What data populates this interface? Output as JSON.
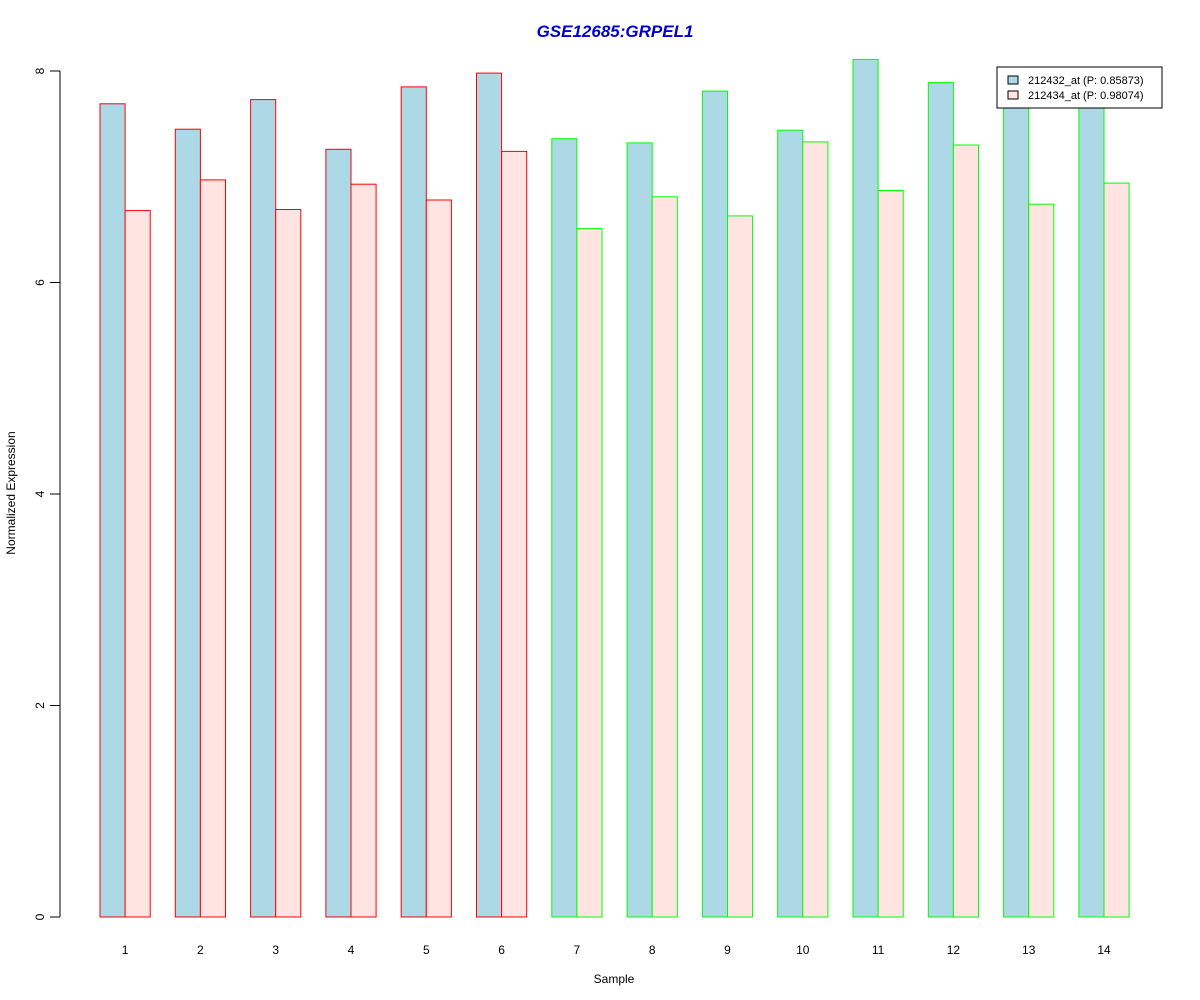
{
  "chart_data": {
    "type": "bar",
    "title": "GSE12685:GRPEL1",
    "xlabel": "Sample",
    "ylabel": "Normalized Expression",
    "categories": [
      "1",
      "2",
      "3",
      "4",
      "5",
      "6",
      "7",
      "8",
      "9",
      "10",
      "11",
      "12",
      "13",
      "14"
    ],
    "y_ticks": [
      "0",
      "2",
      "4",
      "6",
      "8"
    ],
    "ylim": [
      0,
      8
    ],
    "grid": false,
    "legend_position": "top-right",
    "series": [
      {
        "name": "212432_at (P: 0.85873)",
        "fill": "#add8e6",
        "values": [
          7.69,
          7.45,
          7.73,
          7.26,
          7.85,
          7.98,
          7.36,
          7.32,
          7.81,
          7.44,
          8.11,
          7.89,
          7.67,
          7.67
        ]
      },
      {
        "name": "212434_at (P: 0.98074)",
        "fill": "#ffe4e1",
        "values": [
          6.68,
          6.97,
          6.69,
          6.93,
          6.78,
          7.24,
          6.51,
          6.81,
          6.63,
          7.33,
          6.87,
          7.3,
          6.74,
          6.94
        ]
      }
    ],
    "group_border_colors": [
      "#ff0000",
      "#ff0000",
      "#ff0000",
      "#ff0000",
      "#ff0000",
      "#ff0000",
      "#00ff00",
      "#00ff00",
      "#00ff00",
      "#00ff00",
      "#00ff00",
      "#00ff00",
      "#00ff00",
      "#00ff00"
    ],
    "title_color": "#0000cd"
  }
}
